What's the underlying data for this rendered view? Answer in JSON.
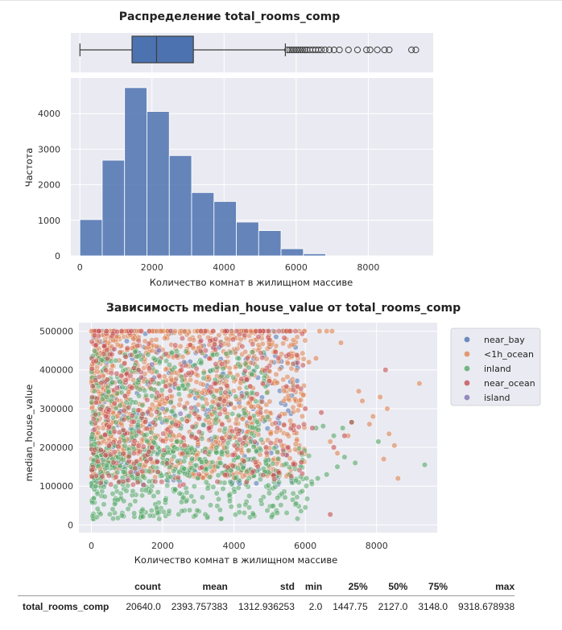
{
  "chart_data": [
    {
      "type": "box",
      "title": "Распределение total_rooms_comp",
      "xlim": [
        -250,
        9800
      ],
      "whisker_low": 2.0,
      "q1": 1447.75,
      "median": 2127.0,
      "q3": 3148.0,
      "whisker_high": 5700,
      "outliers": [
        5760,
        5820,
        5880,
        5940,
        6000,
        6060,
        6120,
        6180,
        6240,
        6300,
        6380,
        6460,
        6540,
        6620,
        6700,
        6800,
        6920,
        7050,
        7200,
        7450,
        7700,
        7950,
        8050,
        8250,
        8450,
        8580,
        9200,
        9318.7
      ],
      "colors": {
        "box": "#4c72b0",
        "bg": "#eaeaf2"
      }
    },
    {
      "type": "histogram",
      "xlabel": "Количество комнат в жилищном массиве",
      "ylabel": "Частота",
      "xlim": [
        -250,
        9800
      ],
      "ylim": [
        0,
        5000
      ],
      "xticks": [
        0,
        2000,
        4000,
        6000,
        8000
      ],
      "yticks": [
        0,
        1000,
        2000,
        3000,
        4000
      ],
      "bin_edges": [
        0,
        620,
        1240,
        1860,
        2480,
        3100,
        3720,
        4340,
        4960,
        5580,
        6200,
        6820
      ],
      "values": [
        1020,
        2690,
        4730,
        4060,
        2820,
        1780,
        1530,
        950,
        710,
        200,
        60
      ],
      "colors": {
        "bar": "#4c72b0",
        "bg": "#eaeaf2"
      }
    },
    {
      "type": "scatter",
      "title": "Зависимость median_house_value от total_rooms_comp",
      "xlabel": "Количество комнат в жилищном массиве",
      "ylabel": "median_house_value",
      "xlim": [
        -350,
        9700
      ],
      "ylim": [
        -20000,
        522000
      ],
      "xticks": [
        0,
        2000,
        4000,
        6000,
        8000
      ],
      "yticks": [
        0,
        100000,
        200000,
        300000,
        400000,
        500000
      ],
      "series": [
        {
          "name": "near_bay",
          "color": "#4c72b0",
          "density": 0.1,
          "clusters": [
            {
              "xmin": 0,
              "xmax": 5800,
              "ymin": 100000,
              "ymax": 500000
            }
          ],
          "extra_points": [
            [
              1200,
              500000
            ],
            [
              2600,
              500000
            ],
            [
              4200,
              500000
            ],
            [
              5600,
              500000
            ]
          ]
        },
        {
          "name": "<1h_ocean",
          "color": "#dd8452",
          "density": 0.44,
          "clusters": [
            {
              "xmin": 0,
              "xmax": 6000,
              "ymin": 120000,
              "ymax": 500000
            }
          ],
          "extra_points": [
            [
              6100,
              420000
            ],
            [
              6300,
              430000
            ],
            [
              6400,
              500000
            ],
            [
              6600,
              500000
            ],
            [
              6750,
              500000
            ],
            [
              7000,
              470000
            ],
            [
              7500,
              345000
            ],
            [
              7600,
              320000
            ],
            [
              7900,
              280000
            ],
            [
              8100,
              330000
            ],
            [
              8300,
              300000
            ],
            [
              8350,
              235000
            ],
            [
              8500,
              205000
            ],
            [
              9200,
              365000
            ],
            [
              6700,
              215000
            ],
            [
              7200,
              230000
            ],
            [
              8200,
              170000
            ],
            [
              8600,
              120000
            ],
            [
              6900,
              185000
            ],
            [
              7800,
              260000
            ]
          ]
        },
        {
          "name": "inland",
          "color": "#55a868",
          "density": 0.32,
          "clusters": [
            {
              "xmin": 0,
              "xmax": 6200,
              "ymin": 15000,
              "ymax": 200000
            },
            {
              "xmin": 0,
              "xmax": 5000,
              "ymin": 120000,
              "ymax": 450000
            }
          ],
          "extra_points": [
            [
              6300,
              250000
            ],
            [
              6500,
              255000
            ],
            [
              6800,
              230000
            ],
            [
              7050,
              250000
            ],
            [
              7300,
              265000
            ],
            [
              8050,
              215000
            ],
            [
              9350,
              155000
            ],
            [
              6900,
              150000
            ],
            [
              6350,
              120000
            ],
            [
              6600,
              130000
            ],
            [
              7100,
              175000
            ],
            [
              7400,
              160000
            ]
          ]
        },
        {
          "name": "near_ocean",
          "color": "#c44e52",
          "density": 0.14,
          "clusters": [
            {
              "xmin": 0,
              "xmax": 6000,
              "ymin": 100000,
              "ymax": 500000
            }
          ],
          "extra_points": [
            [
              6000,
              300000
            ],
            [
              6200,
              250000
            ],
            [
              6450,
              290000
            ],
            [
              6700,
              27000
            ],
            [
              7100,
              230000
            ],
            [
              7300,
              265000
            ],
            [
              8250,
              400000
            ],
            [
              6800,
              200000
            ]
          ]
        },
        {
          "name": "island",
          "color": "#8172b3",
          "density": 0.0,
          "clusters": [],
          "extra_points": [
            [
              1900,
              450000
            ],
            [
              2600,
              420000
            ],
            [
              2000,
              300000
            ],
            [
              2500,
              287000
            ],
            [
              1700,
              414000
            ]
          ]
        }
      ]
    }
  ],
  "stats_table": {
    "columns": [
      "count",
      "mean",
      "std",
      "min",
      "25%",
      "50%",
      "75%",
      "max"
    ],
    "row_label": "total_rooms_comp",
    "cells": [
      "20640.0",
      "2393.757383",
      "1312.936253",
      "2.0",
      "1447.75",
      "2127.0",
      "3148.0",
      "9318.678938"
    ]
  }
}
